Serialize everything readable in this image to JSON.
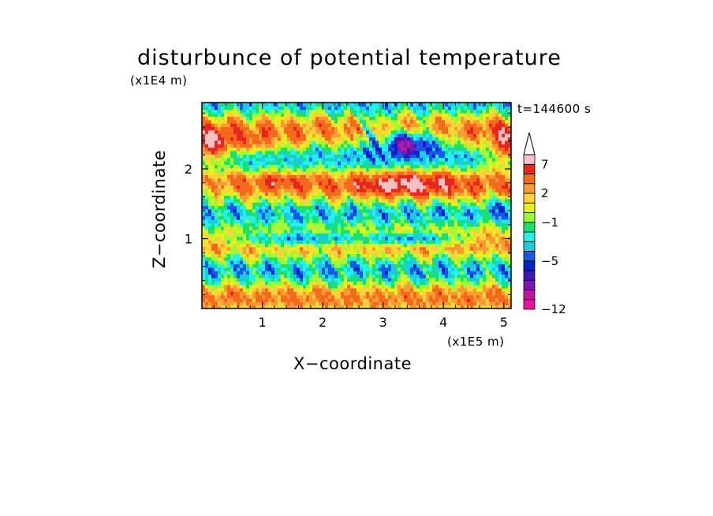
{
  "chart_data": {
    "type": "heatmap",
    "title": "disturbunce of potential temperature",
    "time_label": "t=144600 s",
    "xlabel": "X−coordinate",
    "ylabel": "Z−coordinate",
    "x_unit": "(x1E5 m)",
    "y_unit": "(x1E4 m)",
    "x_ticks": [
      "1",
      "2",
      "3",
      "4",
      "5"
    ],
    "y_ticks": [
      "1",
      "2"
    ],
    "xlim": [
      0,
      5.12
    ],
    "ylim": [
      0,
      2.95
    ],
    "colorbar": {
      "tick_labels": [
        "7",
        "2",
        "−1",
        "−5",
        "−12"
      ],
      "levels": [
        -12,
        -10,
        -8,
        -7,
        -6,
        -5,
        -4,
        -3,
        -2,
        -1,
        0,
        1,
        2,
        3,
        5,
        7,
        9
      ],
      "colors": [
        "#f0119b",
        "#bd17a8",
        "#7a1ab3",
        "#3f17b7",
        "#0722c8",
        "#1a56ee",
        "#1ccae4",
        "#22f2ea",
        "#16e26c",
        "#9cfb34",
        "#e7f018",
        "#fdd23a",
        "#fb9b34",
        "#f46a1c",
        "#e8251e",
        "#f5c1c5"
      ],
      "extend_max": true
    }
  }
}
